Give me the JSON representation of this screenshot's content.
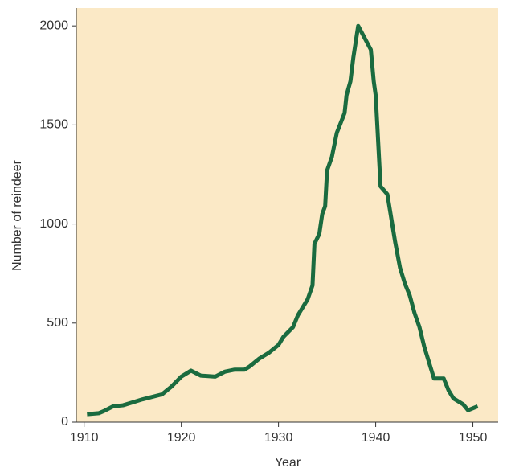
{
  "chart_data": {
    "type": "line",
    "x_label": "Year",
    "y_label": "Number of reindeer",
    "x": [
      1910.3,
      1911.5,
      1912,
      1913,
      1914,
      1915,
      1916,
      1918,
      1919,
      1920,
      1921,
      1922,
      1923.5,
      1924.5,
      1925.5,
      1926.5,
      1927,
      1928,
      1929,
      1930,
      1930.5,
      1931.5,
      1932,
      1932.5,
      1933,
      1933.5,
      1933.7,
      1934.2,
      1934.5,
      1934.8,
      1935,
      1935.5,
      1936,
      1936.8,
      1937,
      1937.4,
      1937.7,
      1938.2,
      1939.5,
      1939.8,
      1940,
      1940.5,
      1941.2,
      1942,
      1942.5,
      1943,
      1943.5,
      1944,
      1944.5,
      1945,
      1946,
      1947,
      1947.5,
      1948,
      1949,
      1949.5,
      1950.5
    ],
    "series": [
      {
        "name": "Reindeer",
        "color": "#1a6b3f",
        "values": [
          40,
          45,
          55,
          80,
          85,
          100,
          115,
          140,
          180,
          230,
          260,
          235,
          230,
          255,
          265,
          265,
          280,
          320,
          350,
          390,
          430,
          480,
          540,
          580,
          620,
          690,
          900,
          950,
          1050,
          1090,
          1270,
          1340,
          1460,
          1560,
          1650,
          1720,
          1840,
          2000,
          1880,
          1720,
          1650,
          1190,
          1150,
          910,
          780,
          700,
          640,
          550,
          480,
          380,
          220,
          220,
          160,
          120,
          90,
          60,
          80
        ]
      }
    ],
    "xlim": [
      1909.2,
      1952.6
    ],
    "xticks": [
      1910,
      1920,
      1930,
      1940,
      1950
    ],
    "ylim": [
      0,
      2090
    ],
    "yticks": [
      0,
      500,
      1000,
      1500,
      2000
    ],
    "background": "#fbe9c6"
  }
}
